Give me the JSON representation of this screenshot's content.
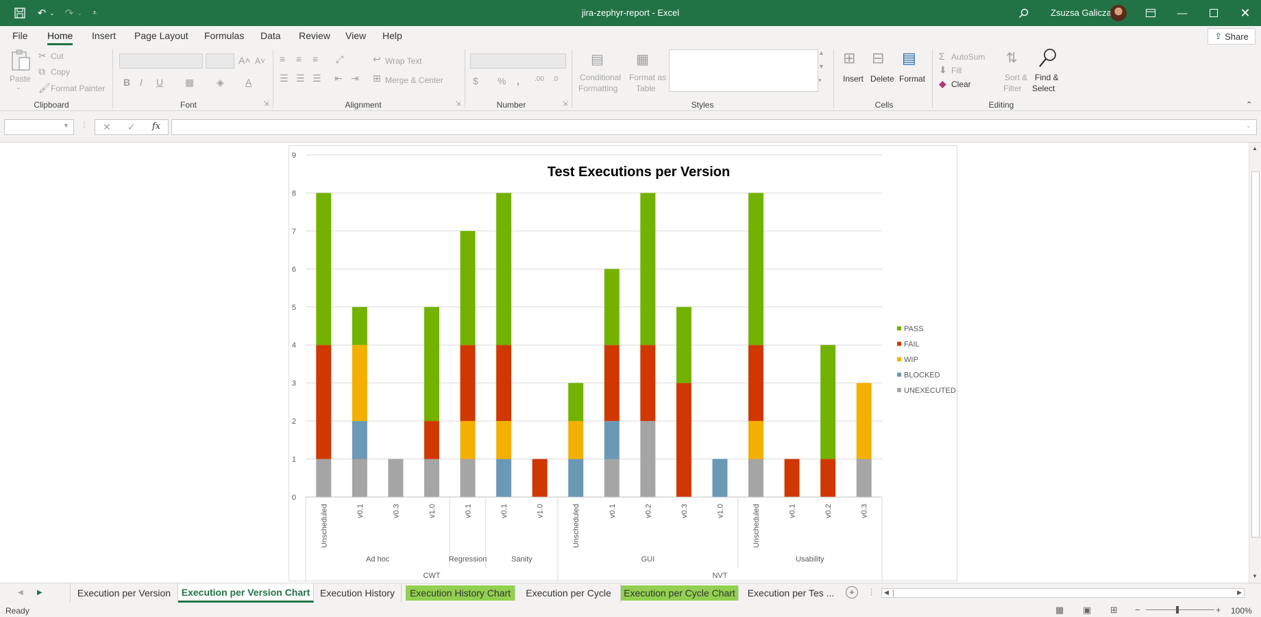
{
  "window": {
    "title": "jira-zephyr-report  -  Excel",
    "user": "Zsuzsa Galicza"
  },
  "menu": {
    "tabs": [
      "File",
      "Home",
      "Insert",
      "Page Layout",
      "Formulas",
      "Data",
      "Review",
      "View",
      "Help"
    ],
    "active": "Home",
    "share": "Share"
  },
  "ribbon": {
    "clipboard": {
      "label": "Clipboard",
      "paste": "Paste",
      "cut": "Cut",
      "copy": "Copy",
      "format_painter": "Format Painter"
    },
    "font": {
      "label": "Font"
    },
    "alignment": {
      "label": "Alignment",
      "wrap_text": "Wrap Text",
      "merge_center": "Merge & Center"
    },
    "number": {
      "label": "Number"
    },
    "styles": {
      "label": "Styles",
      "conditional_1": "Conditional",
      "conditional_2": "Formatting",
      "format_as_1": "Format as",
      "format_as_2": "Table"
    },
    "cells": {
      "label": "Cells",
      "insert": "Insert",
      "delete": "Delete",
      "format": "Format"
    },
    "editing": {
      "label": "Editing",
      "autosum": "AutoSum",
      "fill": "Fill",
      "clear": "Clear",
      "sort_1": "Sort &",
      "sort_2": "Filter",
      "find_1": "Find &",
      "find_2": "Select"
    }
  },
  "formula_bar": {
    "fx": "fx",
    "name_box": "",
    "formula": ""
  },
  "chart_data": {
    "type": "bar",
    "stacked": true,
    "title": "Test Executions per Version",
    "ylim": [
      0,
      9
    ],
    "yticks": [
      0,
      1,
      2,
      3,
      4,
      5,
      6,
      7,
      8,
      9
    ],
    "grid": true,
    "legend_position": "right",
    "categories": [
      "Unscheduled",
      "v0.1",
      "v0.3",
      "v1.0",
      "v0.1",
      "v0.1",
      "v1.0",
      "Unscheduled",
      "v0.1",
      "v0.2",
      "v0.3",
      "v1.0",
      "Unscheduled",
      "v0.1",
      "v0.2",
      "v0.3"
    ],
    "category_groups": [
      {
        "label": "Ad hoc",
        "span": 4
      },
      {
        "label": "Regression",
        "span": 1
      },
      {
        "label": "Sanity",
        "span": 2
      },
      {
        "label": "GUI",
        "span": 5
      },
      {
        "label": "Usability",
        "span": 4
      }
    ],
    "top_groups": [
      {
        "label": "CWT",
        "span": 7
      },
      {
        "label": "NVT",
        "span": 9
      }
    ],
    "series": [
      {
        "name": "UNEXECUTED",
        "color": "#a5a5a5",
        "values": [
          1,
          1,
          1,
          1,
          1,
          0,
          0,
          0,
          1,
          2,
          0,
          0,
          1,
          0,
          0,
          1
        ]
      },
      {
        "name": "BLOCKED",
        "color": "#6a99b6",
        "values": [
          0,
          1,
          0,
          0,
          0,
          1,
          0,
          1,
          1,
          0,
          0,
          1,
          0,
          0,
          0,
          0
        ]
      },
      {
        "name": "WIP",
        "color": "#f4b000",
        "values": [
          0,
          2,
          0,
          0,
          1,
          1,
          0,
          1,
          0,
          0,
          0,
          0,
          1,
          0,
          0,
          2
        ]
      },
      {
        "name": "FAIL",
        "color": "#d13701",
        "values": [
          3,
          0,
          0,
          1,
          2,
          2,
          1,
          0,
          2,
          2,
          3,
          0,
          2,
          1,
          1,
          0
        ]
      },
      {
        "name": "PASS",
        "color": "#73b200",
        "values": [
          4,
          1,
          0,
          3,
          3,
          4,
          0,
          1,
          2,
          4,
          2,
          0,
          4,
          0,
          3,
          0
        ]
      }
    ],
    "legend_order": [
      "PASS",
      "FAIL",
      "WIP",
      "BLOCKED",
      "UNEXECUTED"
    ]
  },
  "sheet_tabs": [
    {
      "label": "Execution per Version",
      "state": "normal"
    },
    {
      "label": "Execution per Version Chart",
      "state": "active"
    },
    {
      "label": "Execution History",
      "state": "normal"
    },
    {
      "label": "Execution History Chart",
      "state": "green"
    },
    {
      "label": "Execution per Cycle",
      "state": "normal"
    },
    {
      "label": "Execution per Cycle Chart",
      "state": "green"
    },
    {
      "label": "Execution per Tes ...",
      "state": "normal"
    }
  ],
  "status": {
    "ready": "Ready",
    "zoom": "100%"
  }
}
